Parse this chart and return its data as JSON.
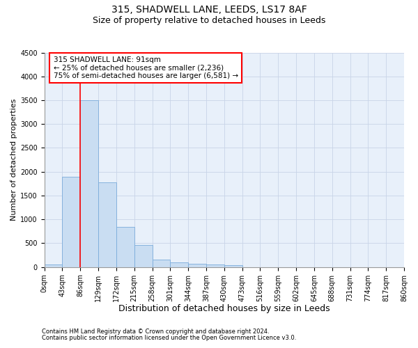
{
  "title1": "315, SHADWELL LANE, LEEDS, LS17 8AF",
  "title2": "Size of property relative to detached houses in Leeds",
  "xlabel": "Distribution of detached houses by size in Leeds",
  "ylabel": "Number of detached properties",
  "bar_values": [
    50,
    1900,
    3500,
    1780,
    840,
    460,
    160,
    100,
    70,
    55,
    45,
    0,
    0,
    0,
    0,
    0,
    0,
    0,
    0,
    0
  ],
  "bin_labels": [
    "0sqm",
    "43sqm",
    "86sqm",
    "129sqm",
    "172sqm",
    "215sqm",
    "258sqm",
    "301sqm",
    "344sqm",
    "387sqm",
    "430sqm",
    "473sqm",
    "516sqm",
    "559sqm",
    "602sqm",
    "645sqm",
    "688sqm",
    "731sqm",
    "774sqm",
    "817sqm",
    "860sqm"
  ],
  "bar_color": "#c9ddf2",
  "bar_edge_color": "#7aabda",
  "grid_color": "#c8d4e8",
  "bg_color": "#e8f0fa",
  "annotation_line1": "315 SHADWELL LANE: 91sqm",
  "annotation_line2": "← 25% of detached houses are smaller (2,236)",
  "annotation_line3": "75% of semi-detached houses are larger (6,581) →",
  "vline_x": 2,
  "ylim": [
    0,
    4500
  ],
  "yticks": [
    0,
    500,
    1000,
    1500,
    2000,
    2500,
    3000,
    3500,
    4000,
    4500
  ],
  "footnote1": "Contains HM Land Registry data © Crown copyright and database right 2024.",
  "footnote2": "Contains public sector information licensed under the Open Government Licence v3.0.",
  "title1_fontsize": 10,
  "title2_fontsize": 9,
  "xlabel_fontsize": 9,
  "ylabel_fontsize": 8,
  "tick_fontsize": 7,
  "annot_fontsize": 7.5,
  "footnote_fontsize": 6
}
